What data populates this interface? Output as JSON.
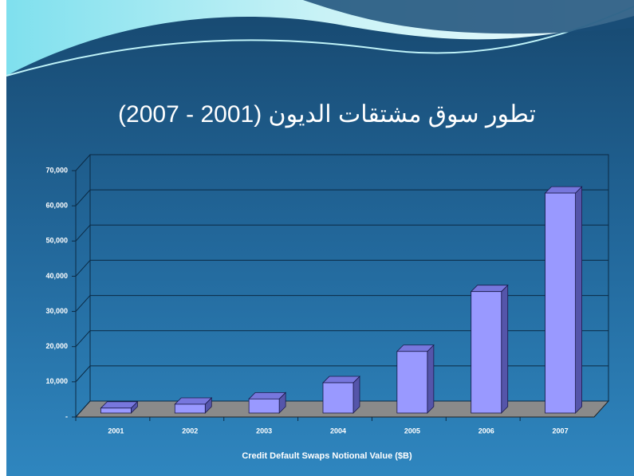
{
  "chart_data": {
    "type": "bar3d",
    "title": "تطور سوق مشتقات الديون (2001 - 2007)",
    "x_label": "Credit Default Swaps Notional Value ($B)",
    "categories": [
      "2001",
      "2002",
      "2003",
      "2004",
      "2005",
      "2006",
      "2007"
    ],
    "values": [
      1400,
      2500,
      4000,
      8600,
      17500,
      34500,
      62500
    ],
    "color": "#9999ff",
    "ylim": [
      0,
      70000
    ],
    "yticks": [
      {
        "value": 0,
        "label": "-"
      },
      {
        "value": 10000,
        "label": "10,000"
      },
      {
        "value": 20000,
        "label": "20,000"
      },
      {
        "value": 30000,
        "label": "30,000"
      },
      {
        "value": 40000,
        "label": "40,000"
      },
      {
        "value": 50000,
        "label": "50,000"
      },
      {
        "value": 60000,
        "label": "60,000"
      },
      {
        "value": 70000,
        "label": "70,000"
      }
    ],
    "grid": true
  }
}
